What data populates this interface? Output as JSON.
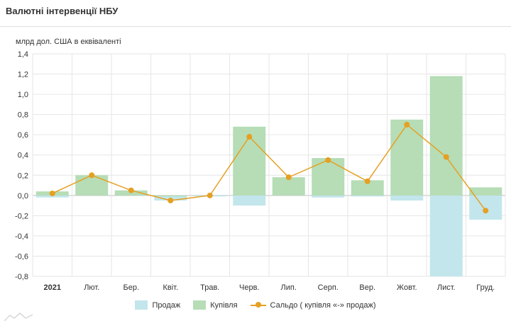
{
  "title": "Валютні інтервенції НБУ",
  "colors": {
    "sale": "#c2e6ec",
    "purchase": "#b6ddb6",
    "balance": "#e5a023",
    "grid": "#e6e6e6"
  },
  "legend": [
    {
      "key": "sale",
      "label": "Продаж"
    },
    {
      "key": "purchase",
      "label": "Купівля"
    },
    {
      "key": "balance",
      "label": "Сальдо ( купівля «-» продаж)"
    }
  ],
  "chart_data": {
    "type": "bar",
    "ylabel": "млрд дол. США в еквіваленті",
    "ylim": [
      -0.8,
      1.4
    ],
    "yticks": [
      "1,4",
      "1,2",
      "1,0",
      "0,8",
      "0,6",
      "0,4",
      "0,2",
      "0,0",
      "-0,2",
      "-0,4",
      "-0,6",
      "-0,8"
    ],
    "ytick_values": [
      1.4,
      1.2,
      1.0,
      0.8,
      0.6,
      0.4,
      0.2,
      0.0,
      -0.2,
      -0.4,
      -0.6,
      -0.8
    ],
    "categories": [
      "2021",
      "Лют.",
      "Бер.",
      "Квіт.",
      "Трав.",
      "Черв.",
      "Лип.",
      "Серп.",
      "Вер.",
      "Жовт.",
      "Лист.",
      "Груд."
    ],
    "bold_categories": [
      "2021"
    ],
    "series": [
      {
        "key": "sale",
        "name": "Продаж",
        "type": "bar",
        "values": [
          -0.02,
          0.0,
          0.0,
          -0.05,
          -0.01,
          -0.1,
          0.0,
          -0.02,
          -0.01,
          -0.05,
          -0.8,
          -0.24
        ]
      },
      {
        "key": "purchase",
        "name": "Купівля",
        "type": "bar",
        "values": [
          0.04,
          0.2,
          0.05,
          -0.01,
          0.0,
          0.68,
          0.18,
          0.37,
          0.15,
          0.75,
          1.18,
          0.08
        ]
      },
      {
        "key": "balance",
        "name": "Сальдо ( купівля «-» продаж)",
        "type": "line",
        "values": [
          0.02,
          0.2,
          0.05,
          -0.05,
          0.0,
          0.58,
          0.18,
          0.35,
          0.14,
          0.7,
          0.38,
          -0.15
        ]
      }
    ],
    "grid": true,
    "legend_position": "bottom-center"
  }
}
